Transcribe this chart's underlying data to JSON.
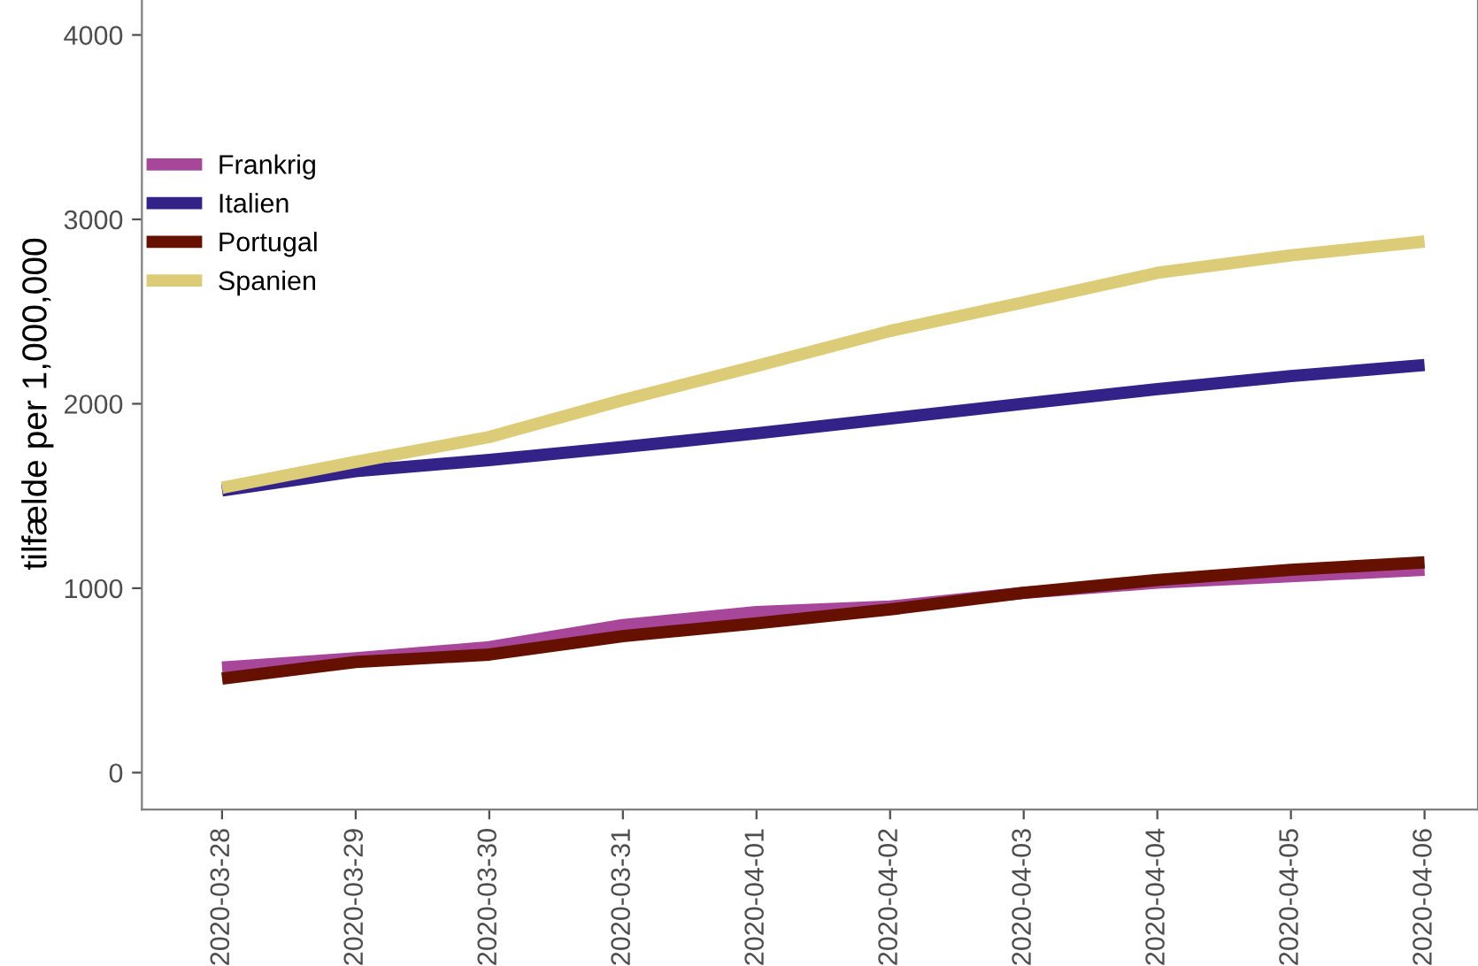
{
  "chart_data": {
    "type": "line",
    "ylabel": "tilfælde per 1,000,000",
    "categories": [
      "2020-03-28",
      "2020-03-29",
      "2020-03-30",
      "2020-03-31",
      "2020-04-01",
      "2020-04-02",
      "2020-04-03",
      "2020-04-04",
      "2020-04-05",
      "2020-04-06"
    ],
    "series": [
      {
        "name": "Frankrig",
        "color": "#a8469a",
        "values": [
          570,
          620,
          680,
          800,
          870,
          900,
          975,
          1030,
          1065,
          1100
        ]
      },
      {
        "name": "Italien",
        "color": "#332288",
        "values": [
          1530,
          1635,
          1695,
          1765,
          1840,
          1920,
          2000,
          2080,
          2150,
          2210
        ]
      },
      {
        "name": "Portugal",
        "color": "#661100",
        "values": [
          510,
          600,
          640,
          740,
          810,
          885,
          975,
          1045,
          1100,
          1140
        ]
      },
      {
        "name": "Spanien",
        "color": "#ddcc77",
        "values": [
          1545,
          1685,
          1820,
          2020,
          2205,
          2395,
          2550,
          2710,
          2805,
          2880
        ]
      }
    ],
    "ylim": [
      -200,
      4200
    ],
    "yticks": [
      0,
      1000,
      2000,
      3000,
      4000
    ],
    "grid": false,
    "legend": "top left",
    "marker": "none",
    "line_style": "solid"
  }
}
